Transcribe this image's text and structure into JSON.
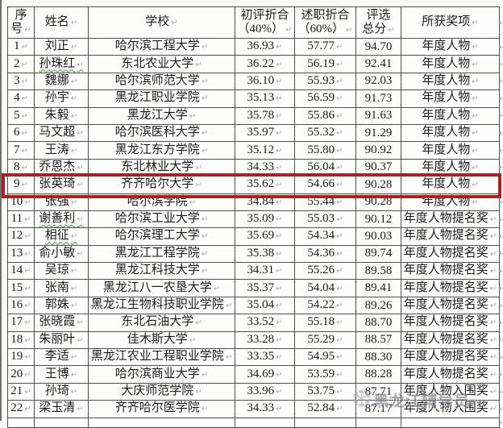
{
  "page": {
    "background": "#faf9f7",
    "border_color": "#4f4f4f"
  },
  "highlight": {
    "row_number": 9,
    "color": "#a92222"
  },
  "watermark": {
    "icon": "❆",
    "icon_name": "snowflake-icon",
    "text": "黑龙江辅导员",
    "color": "#565b63"
  },
  "table": {
    "columns": [
      {
        "key": "index",
        "label": "序\n号"
      },
      {
        "key": "name",
        "label": "姓名"
      },
      {
        "key": "school",
        "label": "学校"
      },
      {
        "key": "initial",
        "label": "初评折合\n（40%）"
      },
      {
        "key": "report",
        "label": "述职折合\n（60%）"
      },
      {
        "key": "total",
        "label": "评选\n总分"
      },
      {
        "key": "award",
        "label": "所获奖项"
      }
    ],
    "rows": [
      {
        "index": "1",
        "name": "刘正",
        "school": "哈尔滨工程大学",
        "initial": "36.93",
        "report": "57.77",
        "total": "94.70",
        "award": "年度人物"
      },
      {
        "index": "2",
        "name": "孙珠红",
        "school": "东北农业大学",
        "initial": "36.22",
        "report": "56.19",
        "total": "92.41",
        "award": "年度人物",
        "name_squiggle": true
      },
      {
        "index": "3",
        "name": "魏娜",
        "school": "哈尔滨师范大学",
        "initial": "36.10",
        "report": "55.93",
        "total": "92.03",
        "award": "年度人物"
      },
      {
        "index": "4",
        "name": "孙宇",
        "school": "黑龙江职业学院",
        "initial": "35.13",
        "report": "56.59",
        "total": "91.73",
        "award": "年度人物"
      },
      {
        "index": "5",
        "name": "朱毅",
        "school": "黑龙江大学",
        "initial": "35.78",
        "report": "55.86",
        "total": "91.63",
        "award": "年度人物"
      },
      {
        "index": "6",
        "name": "马文超",
        "school": "哈尔滨医科大学",
        "initial": "35.97",
        "report": "55.32",
        "total": "91.29",
        "award": "年度人物"
      },
      {
        "index": "7",
        "name": "王涛",
        "school": "黑龙江东方学院",
        "initial": "35.12",
        "report": "55.80",
        "total": "90.92",
        "award": "年度人物"
      },
      {
        "index": "8",
        "name": "乔恩杰",
        "school": "东北林业大学",
        "initial": "34.33",
        "report": "56.04",
        "total": "90.37",
        "award": "年度人物"
      },
      {
        "index": "9",
        "name": "张英琦",
        "school": "齐齐哈尔大学",
        "initial": "35.62",
        "report": "54.66",
        "total": "90.28",
        "award": "年度人物",
        "highlighted": true
      },
      {
        "index": "10",
        "name": "张强",
        "school": "哈尔滨学院",
        "initial": "34.84",
        "report": "55.44",
        "total": "90.28",
        "award": "年度人物"
      },
      {
        "index": "11",
        "name": "谢善利",
        "school": "哈尔滨工业大学",
        "initial": "35.09",
        "report": "55.03",
        "total": "90.12",
        "award": "年度人物提名奖",
        "name_squiggle": true
      },
      {
        "index": "12",
        "name": "相征",
        "school": "哈尔滨理工大学",
        "initial": "35.69",
        "report": "54.34",
        "total": "90.03",
        "award": "年度人物提名奖",
        "name_squiggle": true
      },
      {
        "index": "13",
        "name": "俞小敏",
        "school": "黑龙江工程学院",
        "initial": "35.38",
        "report": "54.36",
        "total": "89.74",
        "award": "年度人物提名奖"
      },
      {
        "index": "14",
        "name": "吴琼",
        "school": "黑龙江科技大学",
        "initial": "34.31",
        "report": "55.26",
        "total": "89.58",
        "award": "年度人物提名奖"
      },
      {
        "index": "15",
        "name": "张南",
        "school": "黑龙江八一农垦大学",
        "initial": "35.37",
        "report": "54.04",
        "total": "89.41",
        "award": "年度人物提名奖"
      },
      {
        "index": "16",
        "name": "郭姝",
        "school": "黑龙江生物科技职业学院",
        "initial": "35.04",
        "report": "54.22",
        "total": "89.26",
        "award": "年度人物提名奖"
      },
      {
        "index": "17",
        "name": "张晓霞",
        "school": "东北石油大学",
        "initial": "33.52",
        "report": "55.18",
        "total": "88.70",
        "award": "年度人物提名奖"
      },
      {
        "index": "18",
        "name": "朱丽叶",
        "school": "佳木斯大学",
        "initial": "33.28",
        "report": "55.29",
        "total": "88.57",
        "award": "年度人物提名奖"
      },
      {
        "index": "19",
        "name": "李适",
        "school": "黑龙江农业工程职业学院",
        "initial": "33.35",
        "report": "54.95",
        "total": "88.30",
        "award": "年度人物提名奖"
      },
      {
        "index": "20",
        "name": "王博",
        "school": "哈尔滨商业大学",
        "initial": "34.69",
        "report": "53.59",
        "total": "88.28",
        "award": "年度人物提名奖"
      },
      {
        "index": "21",
        "name": "孙琦",
        "school": "大庆师范学院",
        "initial": "33.96",
        "report": "53.75",
        "total": "87.71",
        "award": "年度人物入围奖"
      },
      {
        "index": "22",
        "name": "梁玉清",
        "school": "齐齐哈尔医学院",
        "initial": "34.33",
        "report": "52.84",
        "total": "87.17",
        "award": "年度人物入围奖"
      }
    ]
  }
}
